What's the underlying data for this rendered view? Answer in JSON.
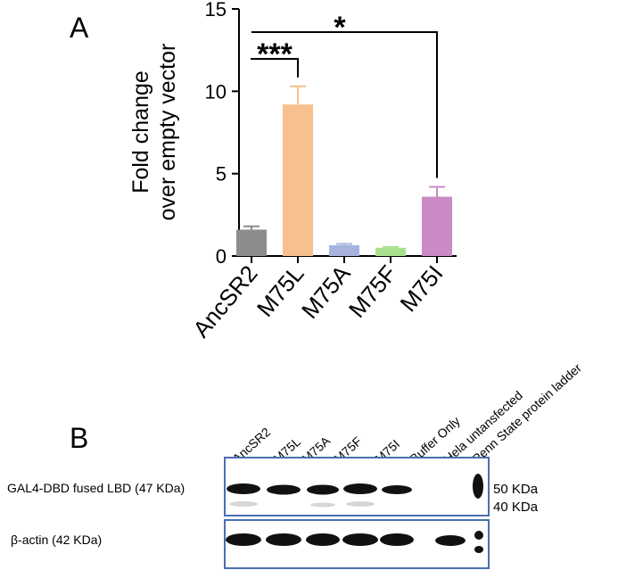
{
  "panel_labels": [
    "A",
    "B"
  ],
  "chart_data": {
    "type": "bar",
    "ylabel": [
      "Fold change",
      "over empty vector"
    ],
    "categories": [
      "AncSR2",
      "M75L",
      "M75A",
      "M75F",
      "M75I"
    ],
    "values": [
      1.6,
      9.2,
      0.65,
      0.5,
      3.6
    ],
    "errors": [
      0.2,
      1.1,
      0.08,
      0.05,
      0.6
    ],
    "colors": [
      "#8c8c8c",
      "#f9c08f",
      "#a7b3dc",
      "#a8e08f",
      "#c98ac6"
    ],
    "ylim": [
      0,
      15
    ],
    "yticks": [
      0,
      5,
      10,
      15
    ],
    "significance": [
      {
        "from": 0,
        "to": 1,
        "label": "***"
      },
      {
        "from": 0,
        "to": 4,
        "label": "*"
      }
    ]
  },
  "blot": {
    "lanes": [
      "AncSR2",
      "M75L",
      "M75A",
      "M75F",
      "M75I",
      "Buffer Only",
      "Hela untansfected",
      "Penn State protein ladder"
    ],
    "rows": [
      "GAL4-DBD fused LBD (47 KDa)",
      "β-actin (42 KDa)"
    ],
    "markers": [
      "50 KDa",
      "40 KDa"
    ]
  }
}
